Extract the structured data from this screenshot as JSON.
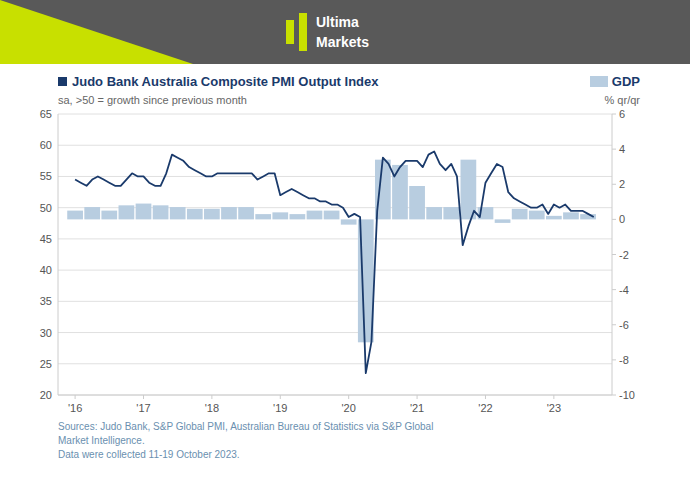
{
  "chart_data": {
    "type": "combo",
    "title": "Judo Bank Australia Composite PMI Output Index",
    "subtitle": "sa, >50 = growth since previous month",
    "y2label": "% qr/qr",
    "annotations": [
      "Ultima",
      "Markets"
    ],
    "source": [
      "Sources: Judo Bank, S&P Global PMI, Australian Bureau of Statistics via S&P Global",
      "Market Intelligence.",
      "Data were collected 11-19 October 2023."
    ],
    "legend": "top-right",
    "grid": true,
    "xlim": [
      2015.75,
      2023.85
    ],
    "xticks": [
      {
        "value": 2016,
        "label": "'16"
      },
      {
        "value": 2017,
        "label": "'17"
      },
      {
        "value": 2018,
        "label": "'18"
      },
      {
        "value": 2019,
        "label": "'19"
      },
      {
        "value": 2020,
        "label": "'20"
      },
      {
        "value": 2021,
        "label": "'21"
      },
      {
        "value": 2022,
        "label": "'22"
      },
      {
        "value": 2023,
        "label": "'23"
      }
    ],
    "ylim": [
      20,
      65
    ],
    "yticks": [
      20,
      25,
      30,
      35,
      40,
      45,
      50,
      55,
      60,
      65
    ],
    "y2lim": [
      -10,
      6
    ],
    "y2ticks": [
      -10,
      -8,
      -6,
      -4,
      -2,
      0,
      2,
      4,
      6
    ],
    "series": [
      {
        "name": "GDP",
        "type": "bar",
        "axis": "y2",
        "color": "#b8cde0",
        "x": [
          2016.0,
          2016.25,
          2016.5,
          2016.75,
          2017.0,
          2017.25,
          2017.5,
          2017.75,
          2018.0,
          2018.25,
          2018.5,
          2018.75,
          2019.0,
          2019.25,
          2019.5,
          2019.75,
          2020.0,
          2020.25,
          2020.5,
          2020.75,
          2021.0,
          2021.25,
          2021.5,
          2021.75,
          2022.0,
          2022.25,
          2022.5,
          2022.75,
          2023.0,
          2023.25,
          2023.5
        ],
        "values": [
          0.5,
          0.7,
          0.5,
          0.8,
          0.9,
          0.8,
          0.7,
          0.6,
          0.6,
          0.7,
          0.7,
          0.3,
          0.4,
          0.3,
          0.5,
          0.5,
          -0.3,
          -7.0,
          3.4,
          3.1,
          1.9,
          0.7,
          0.7,
          3.4,
          0.7,
          -0.2,
          0.6,
          0.5,
          0.2,
          0.4,
          0.3
        ]
      },
      {
        "type": "line",
        "color": "#1a3a6b",
        "x": [
          2016.0,
          2016.083,
          2016.167,
          2016.25,
          2016.333,
          2016.417,
          2016.5,
          2016.583,
          2016.667,
          2016.75,
          2016.833,
          2016.917,
          2017.0,
          2017.083,
          2017.167,
          2017.25,
          2017.333,
          2017.417,
          2017.5,
          2017.583,
          2017.667,
          2017.75,
          2017.833,
          2017.917,
          2018.0,
          2018.083,
          2018.167,
          2018.25,
          2018.333,
          2018.417,
          2018.5,
          2018.583,
          2018.667,
          2018.75,
          2018.833,
          2018.917,
          2019.0,
          2019.083,
          2019.167,
          2019.25,
          2019.333,
          2019.417,
          2019.5,
          2019.583,
          2019.667,
          2019.75,
          2019.833,
          2019.917,
          2020.0,
          2020.083,
          2020.167,
          2020.25,
          2020.333,
          2020.417,
          2020.5,
          2020.583,
          2020.667,
          2020.75,
          2020.833,
          2020.917,
          2021.0,
          2021.083,
          2021.167,
          2021.25,
          2021.333,
          2021.417,
          2021.5,
          2021.583,
          2021.667,
          2021.75,
          2021.833,
          2021.917,
          2022.0,
          2022.083,
          2022.167,
          2022.25,
          2022.333,
          2022.417,
          2022.5,
          2022.583,
          2022.667,
          2022.75,
          2022.833,
          2022.917,
          2023.0,
          2023.083,
          2023.167,
          2023.25,
          2023.333,
          2023.417,
          2023.5,
          2023.583
        ],
        "values": [
          54.5,
          54.0,
          53.5,
          54.5,
          55.0,
          54.5,
          54.0,
          53.5,
          53.5,
          54.5,
          55.5,
          55.0,
          55.0,
          54.0,
          53.5,
          53.5,
          55.5,
          58.5,
          58.0,
          57.5,
          56.5,
          56.0,
          55.5,
          55.0,
          55.0,
          55.5,
          55.5,
          55.5,
          55.5,
          55.5,
          55.5,
          55.5,
          54.5,
          55.0,
          55.5,
          55.5,
          52.0,
          52.5,
          53.0,
          52.5,
          52.0,
          51.5,
          51.5,
          51.0,
          51.0,
          50.5,
          50.5,
          50.0,
          48.5,
          49.0,
          48.5,
          23.5,
          28.5,
          49.5,
          58.0,
          57.0,
          55.0,
          56.5,
          57.5,
          57.5,
          57.5,
          56.5,
          58.5,
          59.0,
          57.0,
          56.0,
          57.0,
          55.0,
          44.0,
          47.0,
          49.5,
          48.5,
          54.0,
          55.5,
          57.0,
          56.5,
          52.5,
          51.5,
          51.0,
          50.5,
          50.0,
          50.0,
          50.5,
          49.0,
          50.5,
          50.0,
          50.5,
          49.5,
          49.5,
          49.5,
          49.0,
          48.5
        ]
      }
    ]
  }
}
